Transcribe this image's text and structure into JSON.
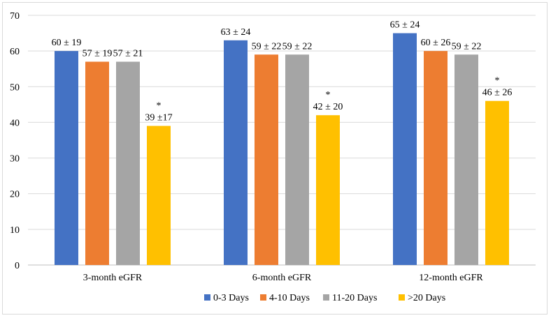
{
  "chart_data": {
    "type": "bar",
    "title": "",
    "xlabel": "",
    "ylabel": "",
    "ylim": [
      0,
      70
    ],
    "yticks": [
      0,
      10,
      20,
      30,
      40,
      50,
      60,
      70
    ],
    "grid": true,
    "legend_position": "bottom",
    "categories": [
      "3-month eGFR",
      "6-month eGFR",
      "12-month eGFR"
    ],
    "series": [
      {
        "name": "0-3 Days",
        "color": "#4472C4",
        "values": [
          60,
          63,
          65
        ],
        "labels": [
          "60 ± 19",
          "63 ± 24",
          "65 ± 24"
        ],
        "significance": [
          "",
          "",
          ""
        ]
      },
      {
        "name": "4-10 Days",
        "color": "#ED7D31",
        "values": [
          57,
          59,
          60
        ],
        "labels": [
          "57 ± 19",
          "59 ± 22",
          "60 ± 26"
        ],
        "significance": [
          "",
          "",
          ""
        ]
      },
      {
        "name": "11-20 Days",
        "color": "#A5A5A5",
        "values": [
          57,
          59,
          59
        ],
        "labels": [
          "57 ± 21",
          "59 ± 22",
          "59 ± 22"
        ],
        "significance": [
          "",
          "",
          ""
        ]
      },
      {
        "name": ">20 Days",
        "color": "#FFC000",
        "values": [
          39,
          42,
          46
        ],
        "labels": [
          "39 ±17",
          "42 ± 20",
          "46 ± 26"
        ],
        "significance": [
          "*",
          "*",
          "*"
        ]
      }
    ]
  }
}
